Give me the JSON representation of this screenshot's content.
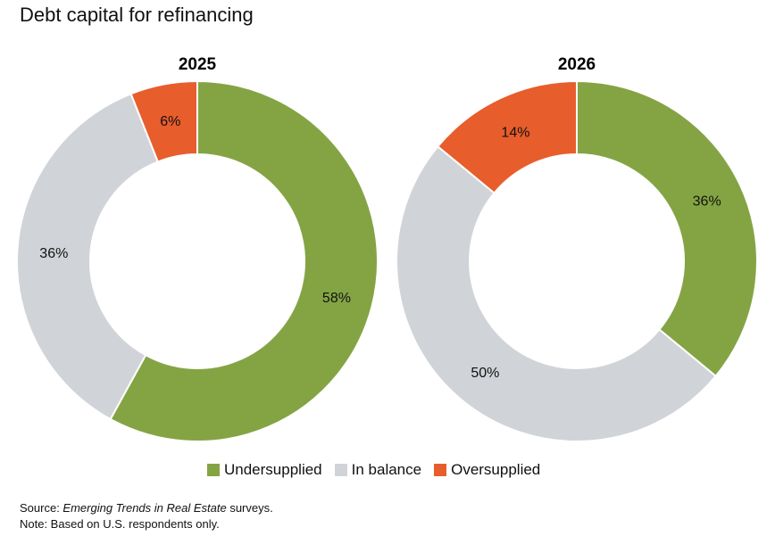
{
  "chart_data": [
    {
      "type": "pie",
      "title": "2025",
      "categories": [
        "Undersupplied",
        "In balance",
        "Oversupplied"
      ],
      "values": [
        58,
        36,
        6
      ],
      "labels": [
        "58%",
        "36%",
        "6%"
      ]
    },
    {
      "type": "pie",
      "title": "2026",
      "categories": [
        "Undersupplied",
        "In balance",
        "Oversupplied"
      ],
      "values": [
        36,
        50,
        14
      ],
      "labels": [
        "36%",
        "50%",
        "14%"
      ]
    }
  ],
  "title": "Debt capital for refinancing",
  "legend": [
    "Undersupplied",
    "In balance",
    "Oversupplied"
  ],
  "colors": [
    "#84a444",
    "#d0d3d7",
    "#e85d2c"
  ],
  "source_prefix": "Source: ",
  "source_italic": "Emerging Trends in Real Estate",
  "source_suffix": " surveys.",
  "note": "Note: Based on U.S. respondents only."
}
